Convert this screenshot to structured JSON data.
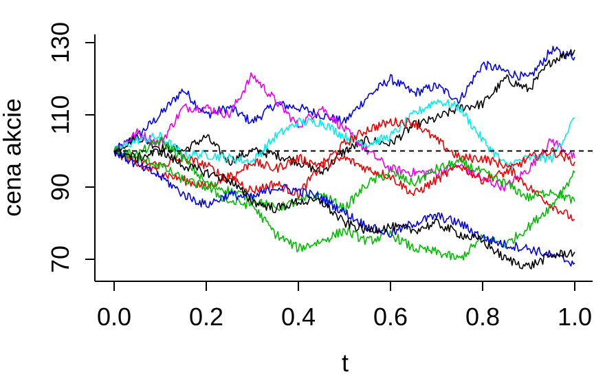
{
  "chart_data": {
    "type": "line",
    "title": "",
    "xlabel": "t",
    "ylabel": "cena akcie",
    "xlim": [
      0.0,
      1.0
    ],
    "ylim": [
      64,
      131
    ],
    "x_ticks": [
      0.0,
      0.2,
      0.4,
      0.6,
      0.8,
      1.0
    ],
    "x_tick_labels": [
      "0.0",
      "0.2",
      "0.4",
      "0.6",
      "0.8",
      "1.0"
    ],
    "y_ticks": [
      70,
      90,
      110,
      130
    ],
    "y_tick_labels": [
      "70",
      "90",
      "110",
      "130"
    ],
    "reference_line": {
      "y": 100,
      "style": "dashed",
      "color": "#000000"
    },
    "grid": false,
    "legend": "none",
    "series": [
      {
        "color": "#0000ee",
        "x": [
          0,
          0.05,
          0.1,
          0.15,
          0.2,
          0.25,
          0.3,
          0.35,
          0.4,
          0.45,
          0.5,
          0.55,
          0.6,
          0.65,
          0.7,
          0.75,
          0.8,
          0.85,
          0.9,
          0.95,
          1.0
        ],
        "y": [
          100,
          104,
          110,
          117,
          110,
          112,
          108,
          113,
          112,
          110,
          108,
          115,
          120,
          116,
          118,
          114,
          124,
          122,
          120,
          128,
          126
        ]
      },
      {
        "color": "#000000",
        "x": [
          0,
          0.05,
          0.1,
          0.15,
          0.2,
          0.25,
          0.3,
          0.35,
          0.4,
          0.45,
          0.5,
          0.55,
          0.6,
          0.65,
          0.7,
          0.75,
          0.8,
          0.85,
          0.9,
          0.95,
          1.0
        ],
        "y": [
          100,
          104,
          101,
          100,
          104,
          97,
          100,
          99,
          97,
          94,
          100,
          103,
          102,
          107,
          109,
          112,
          113,
          120,
          117,
          125,
          128
        ]
      },
      {
        "color": "#ee00ee",
        "x": [
          0,
          0.05,
          0.1,
          0.15,
          0.2,
          0.25,
          0.3,
          0.35,
          0.4,
          0.45,
          0.5,
          0.55,
          0.6,
          0.65,
          0.7,
          0.75,
          0.8,
          0.85,
          0.9,
          0.95,
          1.0
        ],
        "y": [
          100,
          105,
          102,
          112,
          112,
          110,
          121,
          114,
          107,
          112,
          106,
          100,
          95,
          94,
          94,
          96,
          92,
          90,
          95,
          103,
          98
        ]
      },
      {
        "color": "#00eeee",
        "x": [
          0,
          0.05,
          0.1,
          0.15,
          0.2,
          0.25,
          0.3,
          0.35,
          0.4,
          0.45,
          0.5,
          0.55,
          0.6,
          0.65,
          0.7,
          0.75,
          0.8,
          0.85,
          0.9,
          0.95,
          1.0
        ],
        "y": [
          100,
          103,
          104,
          99,
          99,
          98,
          97,
          104,
          108,
          108,
          104,
          102,
          104,
          110,
          114,
          112,
          103,
          96,
          98,
          98,
          109
        ]
      },
      {
        "color": "#ee0000",
        "x": [
          0,
          0.05,
          0.1,
          0.15,
          0.2,
          0.25,
          0.3,
          0.35,
          0.4,
          0.45,
          0.5,
          0.55,
          0.6,
          0.65,
          0.7,
          0.75,
          0.8,
          0.85,
          0.9,
          0.95,
          1.0
        ],
        "y": [
          100,
          96,
          94,
          92,
          90,
          93,
          89,
          91,
          88,
          96,
          102,
          106,
          108,
          108,
          103,
          98,
          98,
          96,
          90,
          85,
          81
        ]
      },
      {
        "color": "#ee0000",
        "x": [
          0,
          0.05,
          0.1,
          0.15,
          0.2,
          0.25,
          0.3,
          0.35,
          0.4,
          0.45,
          0.5,
          0.55,
          0.6,
          0.65,
          0.7,
          0.75,
          0.8,
          0.85,
          0.9,
          0.95,
          1.0
        ],
        "y": [
          100,
          97,
          96,
          98,
          96,
          92,
          97,
          95,
          98,
          96,
          98,
          95,
          93,
          88,
          92,
          96,
          92,
          94,
          98,
          100,
          97
        ]
      },
      {
        "color": "#00bb00",
        "x": [
          0,
          0.05,
          0.1,
          0.15,
          0.2,
          0.25,
          0.3,
          0.35,
          0.4,
          0.45,
          0.5,
          0.55,
          0.6,
          0.65,
          0.7,
          0.75,
          0.8,
          0.85,
          0.9,
          0.95,
          1.0
        ],
        "y": [
          100,
          99,
          103,
          98,
          91,
          89,
          87,
          84,
          86,
          88,
          84,
          91,
          94,
          91,
          95,
          97,
          94,
          91,
          87,
          89,
          86
        ]
      },
      {
        "color": "#00bb00",
        "x": [
          0,
          0.05,
          0.1,
          0.15,
          0.2,
          0.25,
          0.3,
          0.35,
          0.4,
          0.45,
          0.5,
          0.55,
          0.6,
          0.65,
          0.7,
          0.75,
          0.8,
          0.85,
          0.9,
          0.95,
          1.0
        ],
        "y": [
          100,
          98,
          96,
          92,
          90,
          86,
          85,
          77,
          73,
          75,
          78,
          75,
          77,
          73,
          72,
          70,
          76,
          74,
          79,
          85,
          94
        ]
      },
      {
        "color": "#0000ee",
        "x": [
          0,
          0.05,
          0.1,
          0.15,
          0.2,
          0.25,
          0.3,
          0.35,
          0.4,
          0.45,
          0.5,
          0.55,
          0.6,
          0.65,
          0.7,
          0.75,
          0.8,
          0.85,
          0.9,
          0.95,
          1.0
        ],
        "y": [
          100,
          96,
          93,
          88,
          85,
          88,
          87,
          90,
          89,
          87,
          83,
          79,
          77,
          80,
          82,
          80,
          76,
          74,
          73,
          71,
          69
        ]
      },
      {
        "color": "#000000",
        "x": [
          0,
          0.05,
          0.1,
          0.15,
          0.2,
          0.25,
          0.3,
          0.35,
          0.4,
          0.45,
          0.5,
          0.55,
          0.6,
          0.65,
          0.7,
          0.75,
          0.8,
          0.85,
          0.9,
          0.95,
          1.0
        ],
        "y": [
          100,
          98,
          100,
          96,
          94,
          92,
          86,
          84,
          86,
          86,
          80,
          78,
          79,
          78,
          80,
          77,
          75,
          70,
          68,
          71,
          72
        ]
      }
    ]
  }
}
